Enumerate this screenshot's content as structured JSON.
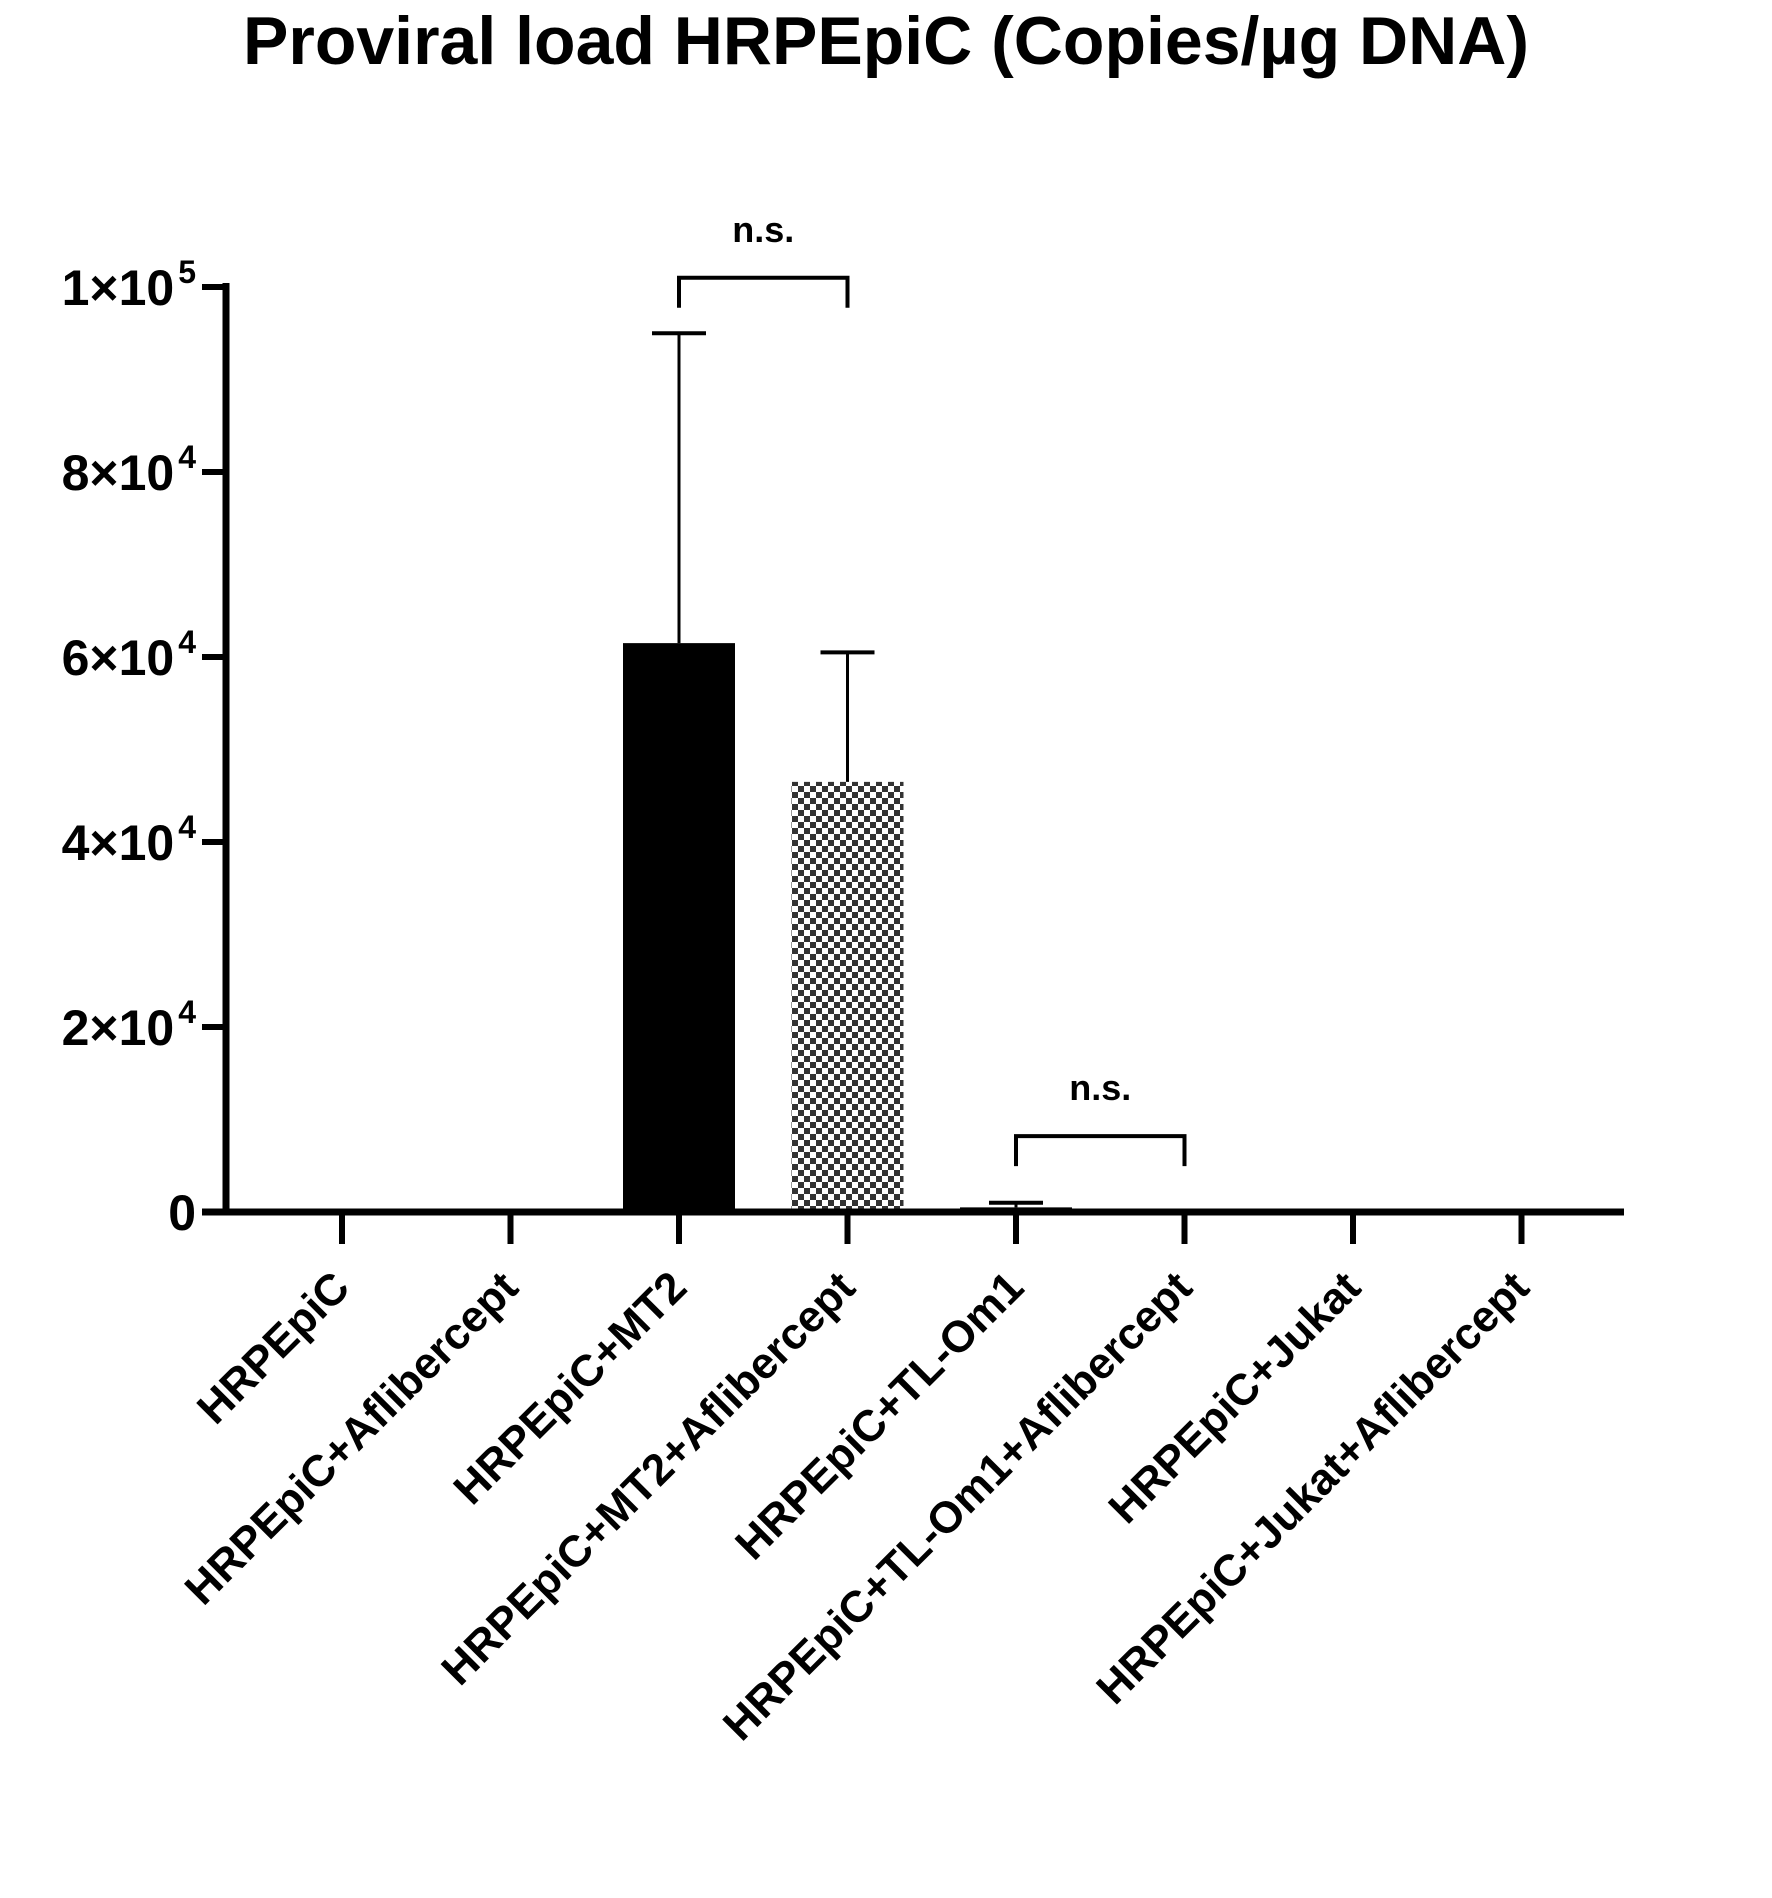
{
  "chart_data": {
    "type": "bar",
    "title": "Proviral load HRPEpiC (Copies/µg DNA)",
    "xlabel": "",
    "ylabel": "",
    "ylim": [
      0,
      100000
    ],
    "grid": false,
    "legend": "none",
    "y_ticks": [
      {
        "value": 0,
        "mantissa": "0",
        "exponent": ""
      },
      {
        "value": 20000,
        "mantissa": "2×10",
        "exponent": "4"
      },
      {
        "value": 40000,
        "mantissa": "4×10",
        "exponent": "4"
      },
      {
        "value": 60000,
        "mantissa": "6×10",
        "exponent": "4"
      },
      {
        "value": 80000,
        "mantissa": "8×10",
        "exponent": "4"
      },
      {
        "value": 100000,
        "mantissa": "1×10",
        "exponent": "5"
      }
    ],
    "categories": [
      "HRPEpiC",
      "HRPEpiC+Aflibercept",
      "HRPEpiC+MT2",
      "HRPEpiC+MT2+Aflibercept",
      "HRPEpiC+TL-Om1",
      "HRPEpiC+TL-Om1+Aflibercept",
      "HRPEpiC+Jukat",
      "HRPEpiC+Jukat+Aflibercept"
    ],
    "values": [
      0,
      0,
      61500,
      46500,
      500,
      0,
      0,
      0
    ],
    "error_upper": [
      0,
      0,
      95000,
      60500,
      1000,
      0,
      0,
      0
    ],
    "fills": [
      "solid",
      "solid",
      "solid",
      "checker",
      "solid",
      "solid",
      "solid",
      "solid"
    ],
    "significance": [
      {
        "from": 2,
        "to": 3,
        "label": "n.s.",
        "bracket_y": 101000
      },
      {
        "from": 4,
        "to": 5,
        "label": "n.s.",
        "bracket_y": 8200
      }
    ]
  },
  "colors": {
    "bar": "#000000",
    "axis": "#000000",
    "checker_light": "#ffffff",
    "checker_dark": "#333333"
  }
}
